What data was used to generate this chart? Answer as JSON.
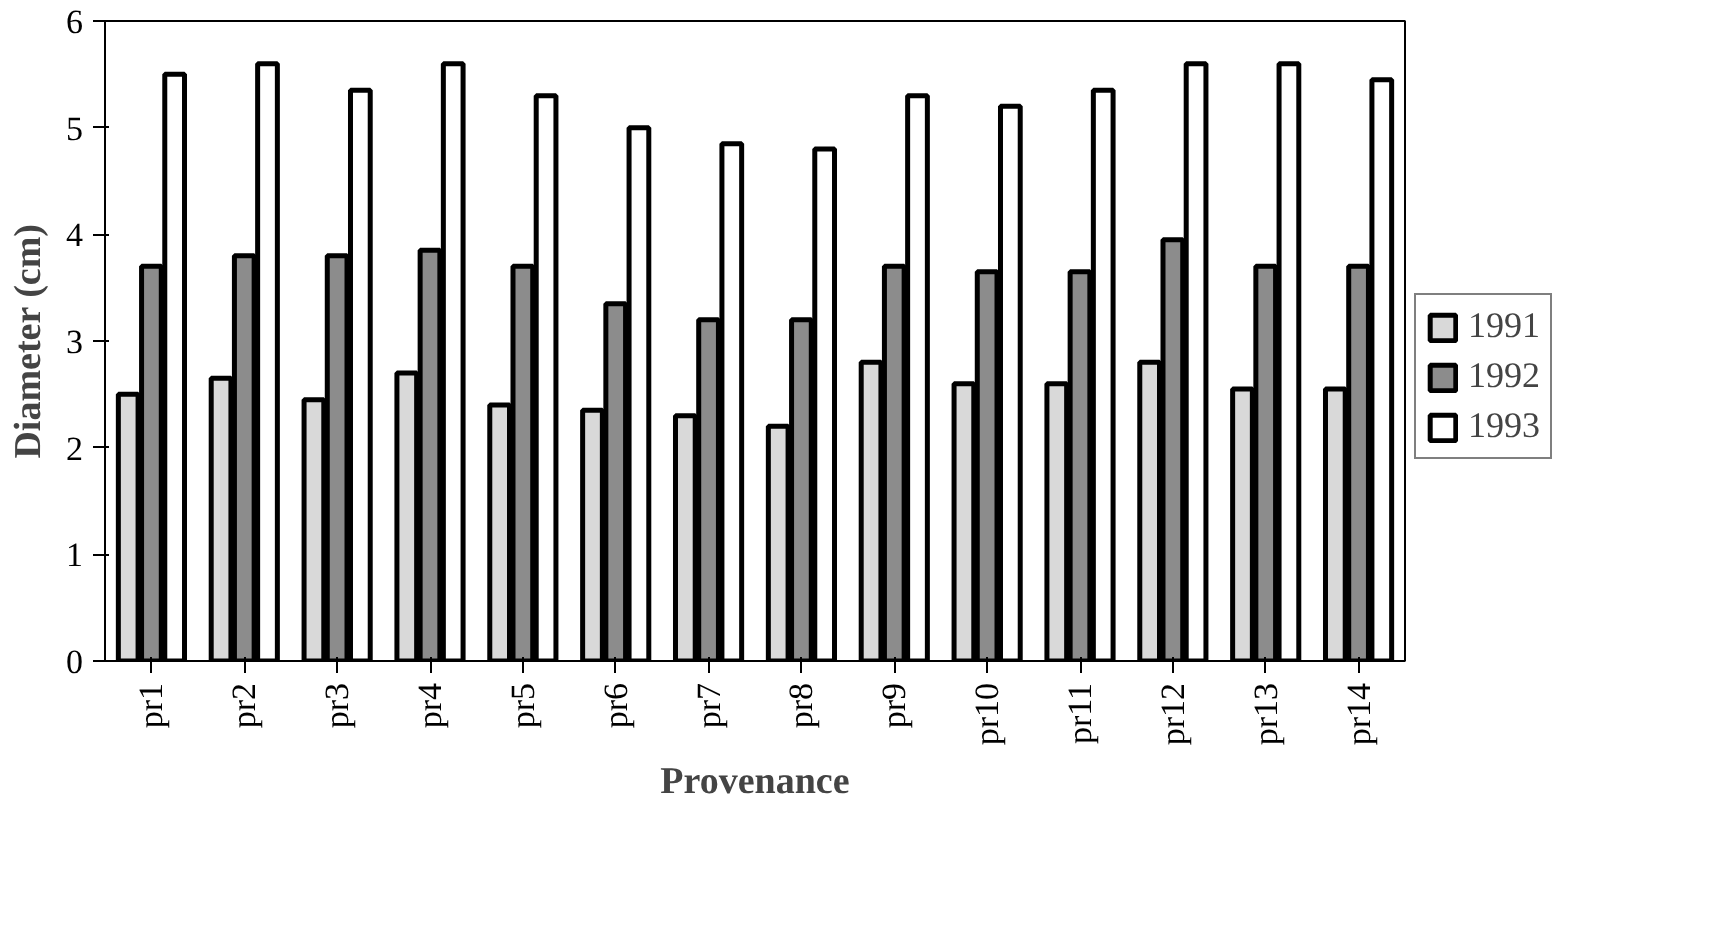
{
  "chart_data": {
    "type": "bar",
    "xlabel": "Provenance",
    "ylabel": "Diameter (cm)",
    "categories": [
      "pr1",
      "pr2",
      "pr3",
      "pr4",
      "pr5",
      "pr6",
      "pr7",
      "pr8",
      "pr9",
      "pr10",
      "pr11",
      "pr12",
      "pr13",
      "pr14"
    ],
    "series": [
      {
        "name": "1991",
        "color": "#d9d9d9",
        "values": [
          2.5,
          2.65,
          2.45,
          2.7,
          2.4,
          2.35,
          2.3,
          2.2,
          2.8,
          2.6,
          2.6,
          2.8,
          2.55,
          2.55
        ]
      },
      {
        "name": "1992",
        "color": "#8c8c8c",
        "values": [
          3.7,
          3.8,
          3.8,
          3.85,
          3.7,
          3.35,
          3.2,
          3.2,
          3.7,
          3.65,
          3.65,
          3.95,
          3.7,
          3.7
        ]
      },
      {
        "name": "1993",
        "color": "#ffffff",
        "values": [
          5.5,
          5.6,
          5.35,
          5.6,
          5.3,
          5.0,
          4.85,
          4.8,
          5.3,
          5.2,
          5.35,
          5.6,
          5.6,
          5.45
        ]
      }
    ],
    "ylim": [
      0,
      6
    ],
    "yticks": [
      0,
      1,
      2,
      3,
      4,
      5,
      6
    ],
    "grid": false,
    "legend": "right"
  }
}
